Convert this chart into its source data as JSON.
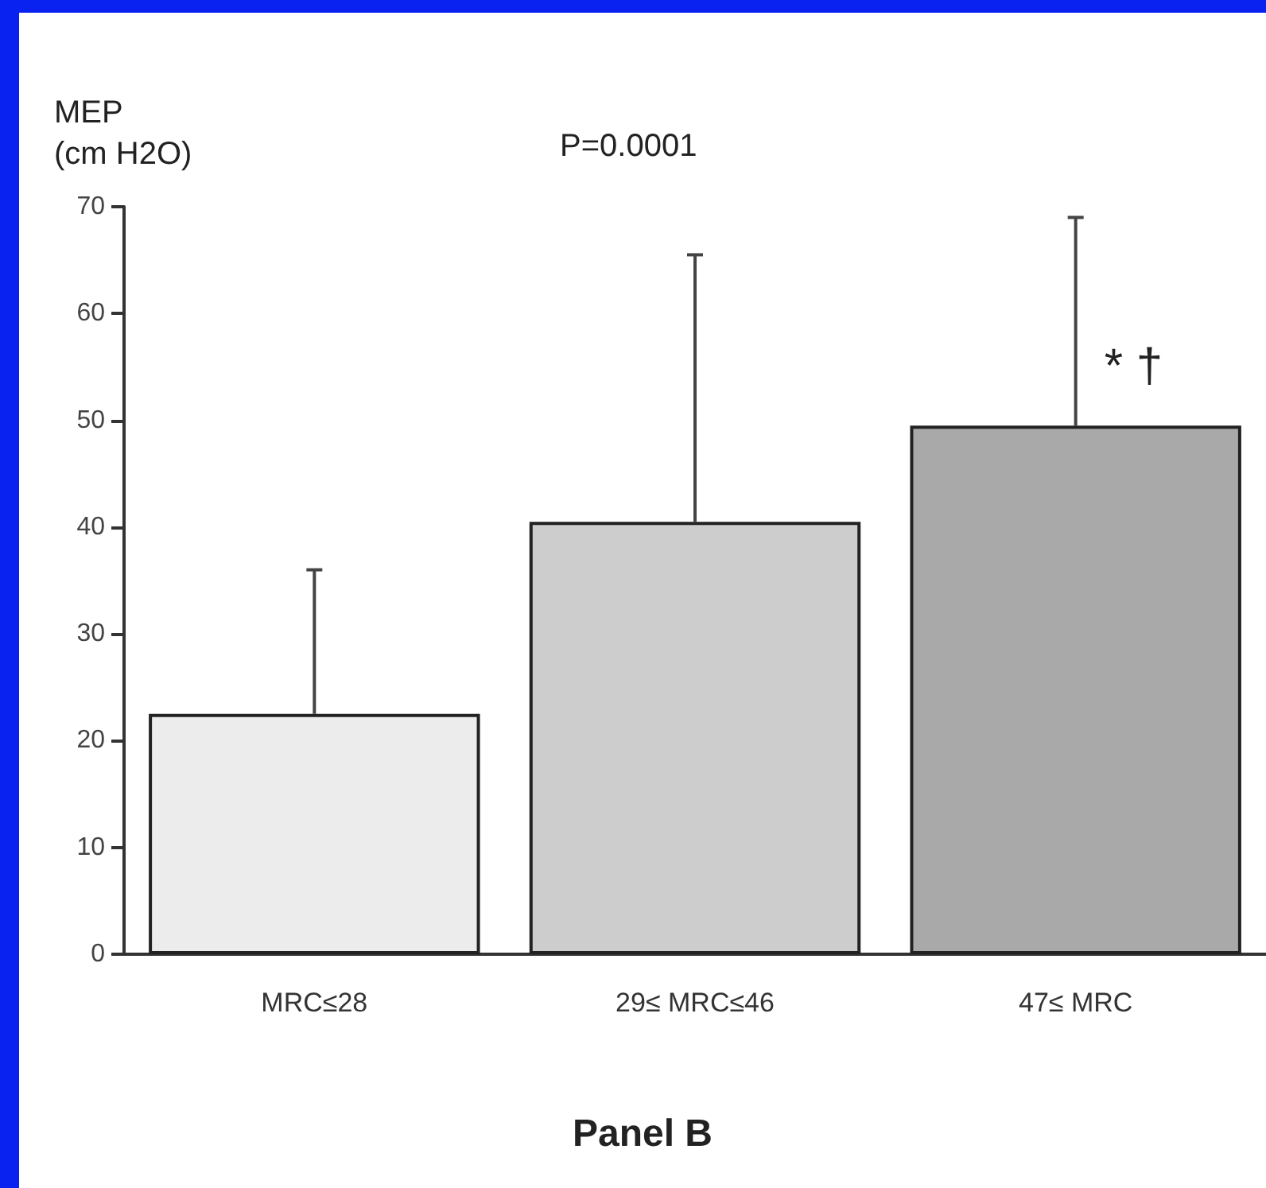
{
  "chart_data": {
    "type": "bar",
    "title": "Panel B",
    "ylabel": "MEP (cm H2O)",
    "categories": [
      "MRC≤28",
      "29≤ MRC≤46",
      "47≤ MRC"
    ],
    "values": [
      22.5,
      40.5,
      49.5
    ],
    "colors": [
      "#ececec",
      "#cdcdcd",
      "#a9a9a9"
    ],
    "errors": [
      [
        22.5,
        36
      ],
      [
        40.5,
        65.5
      ],
      [
        49.5,
        69
      ]
    ],
    "annotations": [
      "P=0.0001",
      {
        "text": "* †",
        "x": "47≤ MRC",
        "y": 55
      }
    ],
    "ylim": [
      0,
      70
    ],
    "yticks": [
      0,
      10,
      20,
      30,
      40,
      50,
      60,
      70
    ],
    "grid": false
  }
}
